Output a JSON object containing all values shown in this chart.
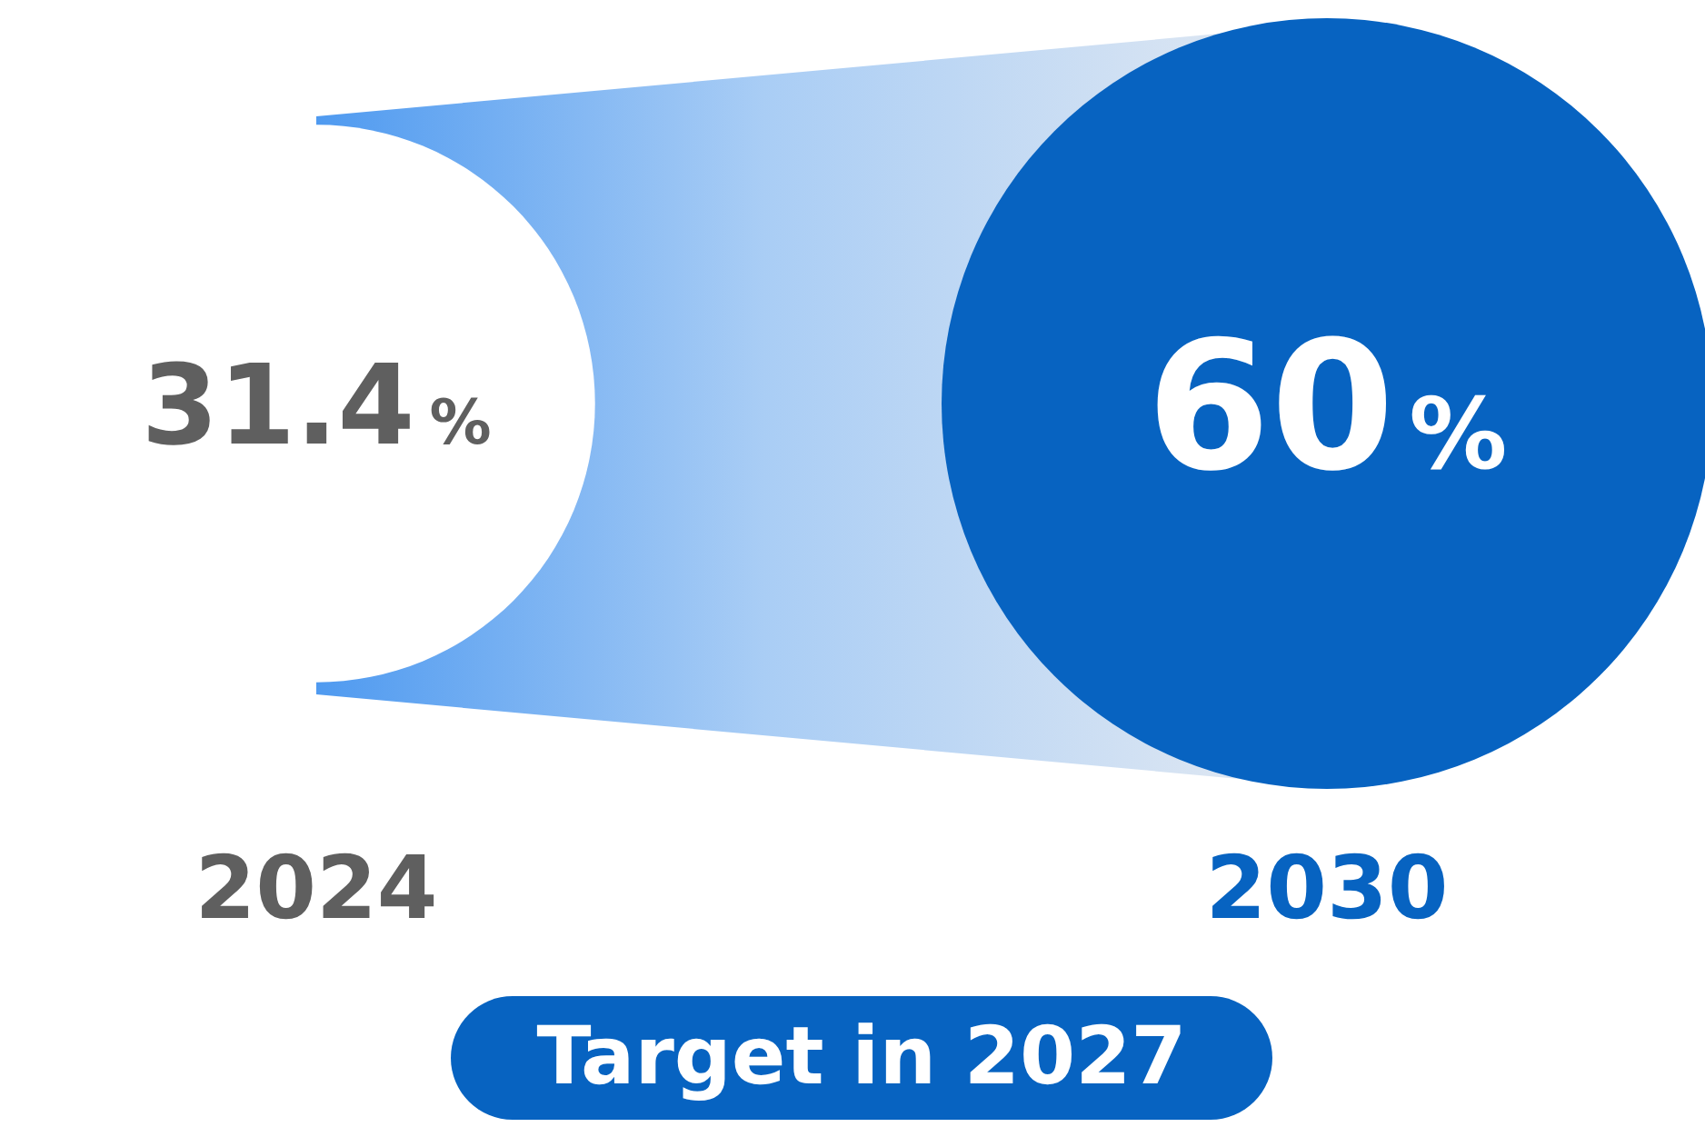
{
  "chart_data": {
    "type": "other",
    "categories": [
      "2024",
      "2030"
    ],
    "values": [
      31.4,
      60
    ],
    "colors": [
      "#ffffff",
      "#0763c1"
    ],
    "value_labels": [
      "31.4%",
      "60%"
    ],
    "annotations": [
      "Target in 2027"
    ]
  }
}
